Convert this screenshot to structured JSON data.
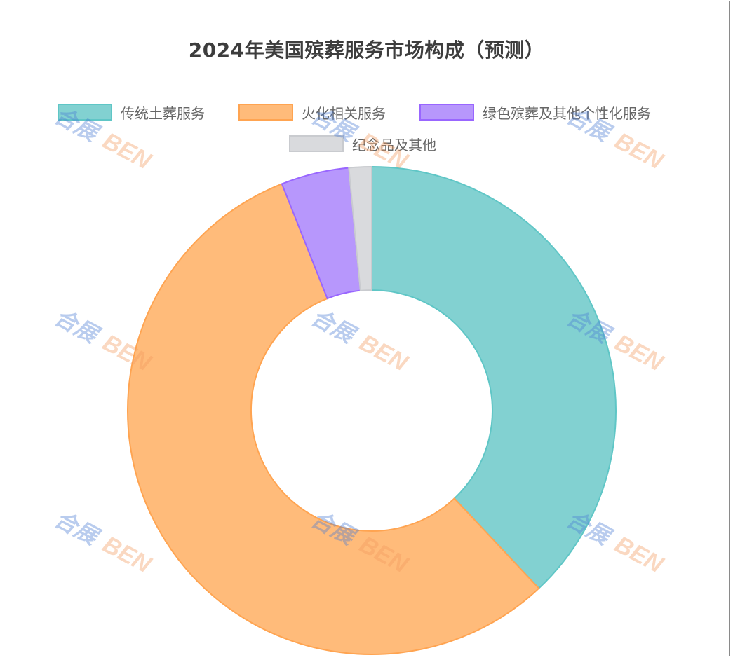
{
  "chart_data": {
    "type": "pie",
    "variant": "donut",
    "title": "2024年美国殡葬服务市场构成（预测）",
    "categories": [
      "传统土葬服务",
      "火化相关服务",
      "绿色殡葬及其他个性化服务",
      "纪念品及其他"
    ],
    "values": [
      38,
      56,
      4.5,
      1.5
    ],
    "colors": {
      "fill": [
        "#82d1d1",
        "#ffbb7a",
        "#b797fc",
        "#d9dadd"
      ],
      "stroke": [
        "#5fc6c6",
        "#ffa451",
        "#9966ff",
        "#c9cbcf"
      ]
    },
    "legend_position": "top"
  },
  "watermark": {
    "cn": "合展",
    "en": "BEN"
  }
}
